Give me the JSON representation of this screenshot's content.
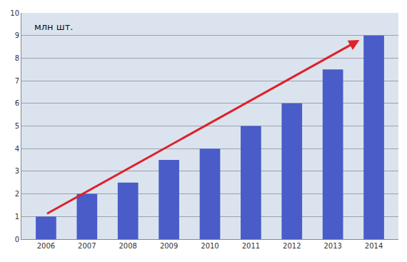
{
  "chart_data": {
    "type": "bar",
    "annotations": [
      "млн шт."
    ],
    "categories": [
      "2006",
      "2007",
      "2008",
      "2009",
      "2010",
      "2011",
      "2012",
      "2013",
      "2014"
    ],
    "values": [
      1,
      2,
      2.5,
      3.5,
      4,
      5,
      6,
      7.5,
      9
    ],
    "color": "#4a5cc8",
    "ylim": [
      0,
      10
    ],
    "yticks": [
      0,
      1,
      2,
      3,
      4,
      5,
      6,
      7,
      8,
      9,
      10
    ],
    "grid": true
  }
}
